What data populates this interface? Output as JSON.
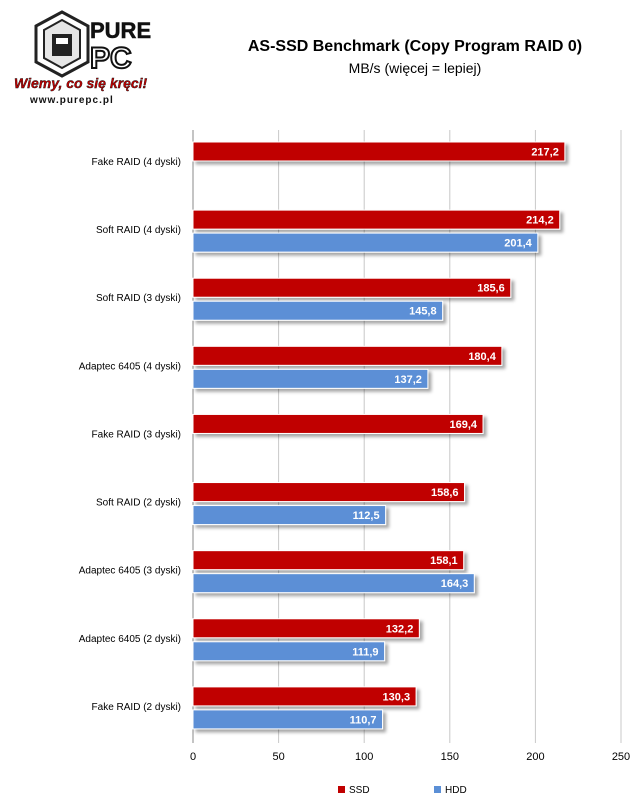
{
  "logo": {
    "brand_top": "PURE",
    "brand_bottom": "PC",
    "slogan": "Wiemy, co się kręci!",
    "url": "www.purepc.pl"
  },
  "colors": {
    "ssd": "#c00000",
    "hdd": "#5b8fd6",
    "grid": "#c8c8c8"
  },
  "chart_data": {
    "type": "bar",
    "orientation": "horizontal",
    "title": "AS-SSD Benchmark (Copy Program RAID 0)",
    "subtitle": "MB/s (więcej = lepiej)",
    "categories": [
      "Fake RAID (4 dyski)",
      "Soft RAID (4 dyski)",
      "Soft RAID (3 dyski)",
      "Adaptec 6405 (4 dyski)",
      "Fake RAID (3 dyski)",
      "Soft RAID (2 dyski)",
      "Adaptec 6405 (3 dyski)",
      "Adaptec 6405 (2 dyski)",
      "Fake RAID (2 dyski)"
    ],
    "series": [
      {
        "name": "SSD",
        "values": [
          217.2,
          214.2,
          185.6,
          180.4,
          169.4,
          158.6,
          158.1,
          132.2,
          130.3
        ],
        "labels": [
          "217,2",
          "214,2",
          "185,6",
          "180,4",
          "169,4",
          "158,6",
          "158,1",
          "132,2",
          "130,3"
        ]
      },
      {
        "name": "HDD",
        "values": [
          null,
          201.4,
          145.8,
          137.2,
          null,
          112.5,
          164.3,
          111.9,
          110.7
        ],
        "labels": [
          null,
          "201,4",
          "145,8",
          "137,2",
          null,
          "112,5",
          "164,3",
          "111,9",
          "110,7"
        ]
      }
    ],
    "xlim": [
      0,
      250
    ],
    "xticks": [
      0,
      50,
      100,
      150,
      200,
      250
    ],
    "grid": true,
    "legend_position": "bottom"
  }
}
